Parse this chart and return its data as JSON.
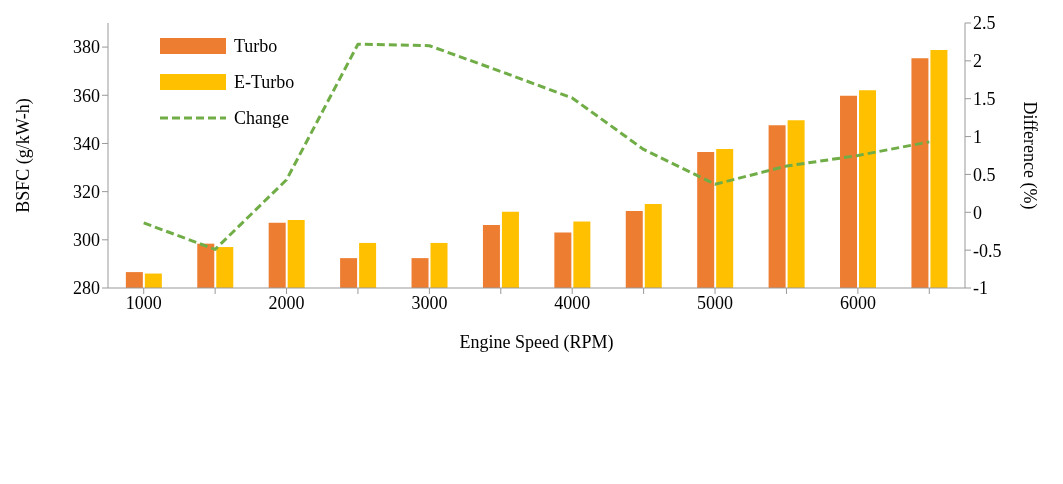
{
  "chart_data": {
    "type": "bar",
    "xlabel": "Engine Speed (RPM)",
    "ylabel": "BSFC (g/kW-h)",
    "y2label": "Difference (%)",
    "categories": [
      "1000",
      null,
      "2000",
      null,
      "3000",
      null,
      "4000",
      null,
      "5000",
      null,
      "6000",
      null
    ],
    "series": [
      {
        "name": "Turbo",
        "color": "#ed7d31",
        "values": [
          286.6,
          298.4,
          307.1,
          292.4,
          292.4,
          306.2,
          303,
          312,
          336.5,
          347.6,
          359.8,
          375.4
        ]
      },
      {
        "name": "E-Turbo",
        "color": "#ffc000",
        "values": [
          286,
          297,
          308.2,
          298.7,
          298.7,
          311.7,
          307.6,
          314.9,
          337.7,
          349.6,
          362.1,
          378.8
        ]
      },
      {
        "name": "Change",
        "type": "line",
        "axis": "y2",
        "color": "#70ad47",
        "line_style": "dashed",
        "marker": "none",
        "values": [
          -0.14,
          -0.49,
          0.43,
          2.22,
          2.2,
          1.86,
          1.51,
          0.83,
          0.37,
          0.61,
          0.75,
          0.93
        ]
      }
    ],
    "ylim": [
      280,
      390
    ],
    "yticks": [
      280,
      300,
      320,
      340,
      360,
      380
    ],
    "y2lim": [
      -1,
      2.5
    ],
    "y2ticks": [
      -1,
      -0.5,
      0,
      0.5,
      1,
      1.5,
      2,
      2.5
    ],
    "grid": false,
    "legend": "top left"
  }
}
